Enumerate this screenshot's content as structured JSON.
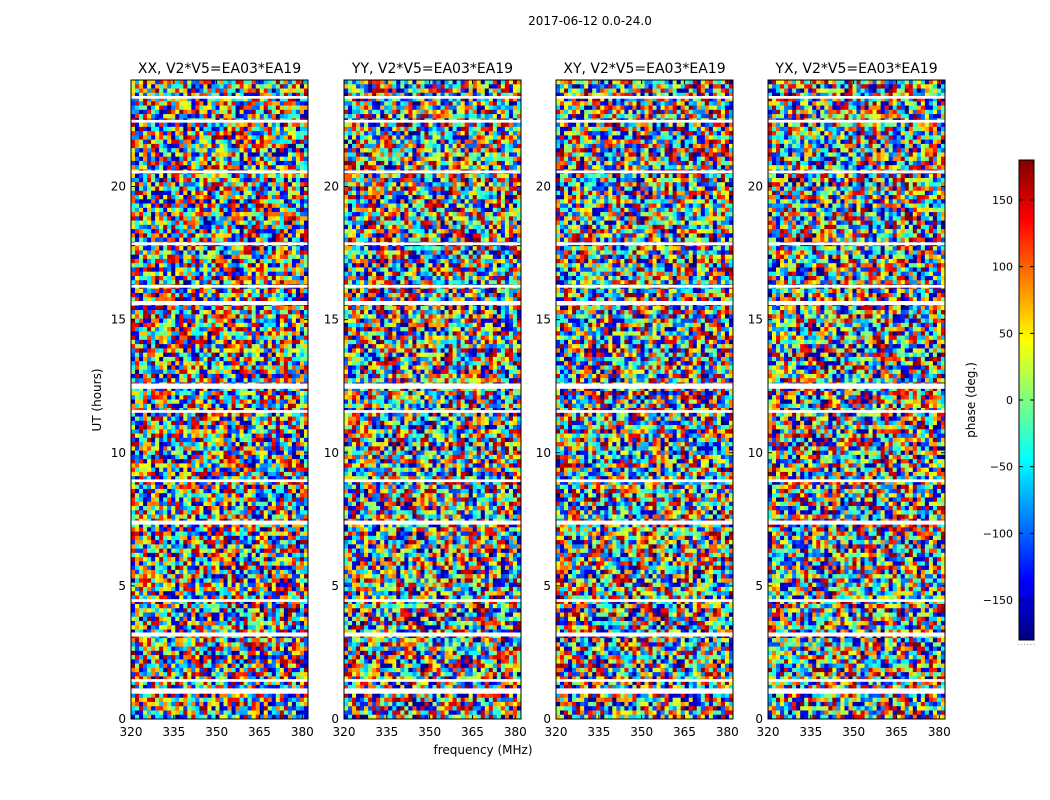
{
  "figure": {
    "suptitle": "2017-06-12 0.0-24.0",
    "xlabel": "frequency (MHz)",
    "ylabel": "UT (hours)",
    "colorbar_label": "phase (deg.)",
    "colorbar_footnote": "......"
  },
  "chart_data": [
    {
      "type": "heatmap",
      "title": "XX, V2*V5=EA03*EA19",
      "xlabel": "frequency (MHz)",
      "ylabel": "UT (hours)",
      "xlim": [
        320,
        382
      ],
      "ylim": [
        0,
        24
      ],
      "xticks": [
        320,
        335,
        350,
        365,
        380
      ],
      "yticks": [
        0,
        5,
        10,
        15,
        20
      ],
      "value": "visibility phase (deg.)",
      "colormap": "jet"
    },
    {
      "type": "heatmap",
      "title": "YY, V2*V5=EA03*EA19",
      "xlabel": "frequency (MHz)",
      "ylabel": "UT (hours)",
      "xlim": [
        320,
        382
      ],
      "ylim": [
        0,
        24
      ],
      "xticks": [
        320,
        335,
        350,
        365,
        380
      ],
      "yticks": [
        0,
        5,
        10,
        15,
        20
      ],
      "value": "visibility phase (deg.)",
      "colormap": "jet"
    },
    {
      "type": "heatmap",
      "title": "XY, V2*V5=EA03*EA19",
      "xlabel": "frequency (MHz)",
      "ylabel": "UT (hours)",
      "xlim": [
        320,
        382
      ],
      "ylim": [
        0,
        24
      ],
      "xticks": [
        320,
        335,
        350,
        365,
        380
      ],
      "yticks": [
        0,
        5,
        10,
        15,
        20
      ],
      "value": "visibility phase (deg.)",
      "colormap": "jet"
    },
    {
      "type": "heatmap",
      "title": "YX, V2*V5=EA03*EA19",
      "xlabel": "frequency (MHz)",
      "ylabel": "UT (hours)",
      "xlim": [
        320,
        382
      ],
      "ylim": [
        0,
        24
      ],
      "xticks": [
        320,
        335,
        350,
        365,
        380
      ],
      "yticks": [
        0,
        5,
        10,
        15,
        20
      ],
      "value": "visibility phase (deg.)",
      "colormap": "jet"
    }
  ],
  "colorbar": {
    "range": [
      -180,
      180
    ],
    "ticks": [
      -150,
      -100,
      -50,
      0,
      50,
      100,
      150
    ],
    "colormap": "jet",
    "colors": [
      "#00007f",
      "#0000ff",
      "#007fff",
      "#00ffff",
      "#7fff7f",
      "#ffff00",
      "#ff7f00",
      "#ff0000",
      "#7f0000"
    ]
  }
}
